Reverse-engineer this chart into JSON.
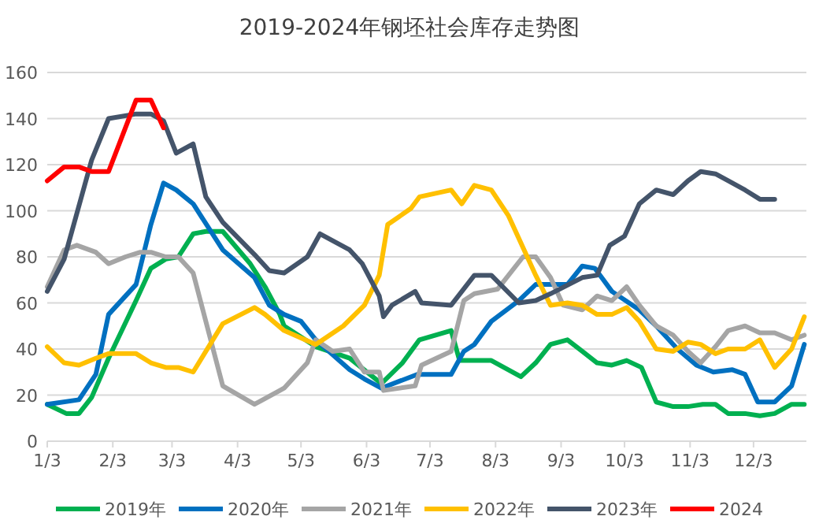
{
  "chart_data": {
    "type": "line",
    "title": "2019-2024年钢坯社会库存走势图",
    "xlim": [
      "--01-03",
      "--12-28"
    ],
    "xticks": [
      {
        "value": "--01-03",
        "label": "1/3"
      },
      {
        "value": "--02-03",
        "label": "2/3"
      },
      {
        "value": "--03-03",
        "label": "3/3"
      },
      {
        "value": "--04-03",
        "label": "4/3"
      },
      {
        "value": "--05-03",
        "label": "5/3"
      },
      {
        "value": "--06-03",
        "label": "6/3"
      },
      {
        "value": "--07-03",
        "label": "7/3"
      },
      {
        "value": "--08-03",
        "label": "8/3"
      },
      {
        "value": "--09-03",
        "label": "9/3"
      },
      {
        "value": "--10-03",
        "label": "10/3"
      },
      {
        "value": "--11-03",
        "label": "11/3"
      },
      {
        "value": "--12-03",
        "label": "12/3"
      }
    ],
    "ylim": [
      0,
      160
    ],
    "yticks": [
      0,
      20,
      40,
      60,
      80,
      100,
      120,
      140,
      160
    ],
    "grid": "y",
    "legend": "bottom",
    "series": [
      {
        "name": "2019年",
        "color": "#00b050",
        "x": [
          "--01-03",
          "--01-12",
          "--01-18",
          "--01-24",
          "--02-01",
          "--02-14",
          "--02-21",
          "--02-28",
          "--03-06",
          "--03-13",
          "--03-19",
          "--03-27",
          "--04-09",
          "--04-16",
          "--04-23",
          "--04-25",
          "--05-10",
          "--05-26",
          "--06-10",
          "--06-20",
          "--06-28",
          "--07-13",
          "--07-17",
          "--08-01",
          "--08-15",
          "--08-22",
          "--08-29",
          "--09-06",
          "--09-13",
          "--09-20",
          "--09-27",
          "--10-04",
          "--10-11",
          "--10-18",
          "--10-26",
          "--11-02",
          "--11-09",
          "--11-15",
          "--11-21",
          "--11-29",
          "--12-06",
          "--12-13",
          "--12-21",
          "--12-27"
        ],
        "values": [
          16,
          12,
          12,
          19,
          36,
          61,
          75,
          79,
          80,
          90,
          91,
          91,
          77,
          67,
          55,
          50,
          41,
          36,
          25,
          34,
          44,
          48,
          35,
          35,
          28,
          34,
          42,
          44,
          39,
          34,
          33,
          35,
          32,
          17,
          15,
          15,
          16,
          16,
          12,
          12,
          11,
          12,
          16,
          16
        ]
      },
      {
        "name": "2020年",
        "color": "#0070c0",
        "x": [
          "--01-03",
          "--01-18",
          "--01-26",
          "--02-01",
          "--02-14",
          "--02-21",
          "--02-27",
          "--03-05",
          "--03-13",
          "--03-27",
          "--04-11",
          "--04-18",
          "--04-25",
          "--05-03",
          "--05-10",
          "--05-26",
          "--06-02",
          "--06-10",
          "--06-27",
          "--07-13",
          "--07-19",
          "--07-24",
          "--08-01",
          "--08-14",
          "--08-22",
          "--09-06",
          "--09-13",
          "--09-19",
          "--09-27",
          "--10-10",
          "--10-18",
          "--10-28",
          "--11-06",
          "--11-14",
          "--11-23",
          "--11-29",
          "--12-05",
          "--12-13",
          "--12-21",
          "--12-27"
        ],
        "values": [
          16,
          18,
          29,
          55,
          68,
          94,
          112,
          109,
          103,
          83,
          71,
          59,
          55,
          52,
          44,
          31,
          27,
          23,
          29,
          29,
          39,
          42,
          52,
          61,
          68,
          68,
          76,
          75,
          65,
          57,
          50,
          40,
          33,
          30,
          31,
          29,
          17,
          17,
          24,
          42
        ]
      },
      {
        "name": "2021年",
        "color": "#a5a5a5",
        "x": [
          "--01-03",
          "--01-11",
          "--01-17",
          "--01-26",
          "--02-01",
          "--02-09",
          "--02-16",
          "--02-21",
          "--02-28",
          "--03-06",
          "--03-13",
          "--03-19",
          "--03-27",
          "--04-11",
          "--04-23",
          "--04-25",
          "--05-06",
          "--05-10",
          "--05-18",
          "--05-26",
          "--06-02",
          "--06-09",
          "--06-11",
          "--06-26",
          "--06-29",
          "--07-13",
          "--07-19",
          "--07-24",
          "--08-04",
          "--08-16",
          "--08-22",
          "--08-29",
          "--09-04",
          "--09-13",
          "--09-20",
          "--09-27",
          "--10-04",
          "--10-10",
          "--10-18",
          "--10-26",
          "--11-02",
          "--11-08",
          "--11-15",
          "--11-21",
          "--11-29",
          "--12-06",
          "--12-13",
          "--12-21",
          "--12-27"
        ],
        "values": [
          67,
          83,
          85,
          82,
          77,
          80,
          82,
          82,
          80,
          80,
          73,
          52,
          24,
          16,
          22,
          23,
          34,
          44,
          39,
          40,
          30,
          30,
          22,
          24,
          33,
          39,
          61,
          64,
          66,
          80,
          80,
          71,
          59,
          57,
          63,
          61,
          67,
          59,
          50,
          46,
          39,
          34,
          41,
          48,
          50,
          47,
          47,
          44,
          46
        ]
      },
      {
        "name": "2022年",
        "color": "#ffc000",
        "x": [
          "--01-03",
          "--01-11",
          "--01-18",
          "--01-26",
          "--02-01",
          "--02-14",
          "--02-21",
          "--02-28",
          "--03-06",
          "--03-13",
          "--03-27",
          "--04-11",
          "--04-16",
          "--04-25",
          "--05-10",
          "--05-23",
          "--06-02",
          "--06-09",
          "--06-13",
          "--06-24",
          "--06-28",
          "--07-13",
          "--07-18",
          "--07-24",
          "--08-01",
          "--08-09",
          "--08-22",
          "--08-29",
          "--09-06",
          "--09-13",
          "--09-20",
          "--09-27",
          "--10-04",
          "--10-10",
          "--10-18",
          "--10-26",
          "--11-02",
          "--11-08",
          "--11-15",
          "--11-21",
          "--11-29",
          "--12-06",
          "--12-13",
          "--12-21",
          "--12-27"
        ],
        "values": [
          41,
          34,
          33,
          36,
          38,
          38,
          34,
          32,
          32,
          30,
          51,
          58,
          55,
          48,
          42,
          50,
          59,
          72,
          94,
          101,
          106,
          109,
          103,
          111,
          109,
          98,
          72,
          59,
          60,
          59,
          55,
          55,
          58,
          52,
          40,
          39,
          43,
          42,
          38,
          40,
          40,
          44,
          32,
          40,
          54
        ]
      },
      {
        "name": "2023年",
        "color": "#44546a",
        "x": [
          "--01-03",
          "--01-11",
          "--01-24",
          "--02-01",
          "--02-14",
          "--02-21",
          "--02-27",
          "--03-05",
          "--03-13",
          "--03-19",
          "--03-27",
          "--04-11",
          "--04-18",
          "--04-25",
          "--05-06",
          "--05-12",
          "--05-26",
          "--06-01",
          "--06-09",
          "--06-11",
          "--06-15",
          "--06-26",
          "--06-29",
          "--07-13",
          "--07-24",
          "--08-01",
          "--08-14",
          "--08-22",
          "--08-29",
          "--09-13",
          "--09-20",
          "--09-26",
          "--10-03",
          "--10-10",
          "--10-18",
          "--10-26",
          "--11-02",
          "--11-08",
          "--11-15",
          "--11-21",
          "--11-29",
          "--12-06",
          "--12-13"
        ],
        "values": [
          65,
          79,
          122,
          140,
          142,
          142,
          139,
          125,
          129,
          106,
          95,
          81,
          74,
          73,
          80,
          90,
          83,
          77,
          63,
          54,
          59,
          65,
          60,
          59,
          72,
          72,
          60,
          61,
          64,
          71,
          72,
          85,
          89,
          103,
          109,
          107,
          113,
          117,
          116,
          113,
          109,
          105,
          105
        ]
      },
      {
        "name": "2024",
        "color": "#ff0000",
        "x": [
          "--01-03",
          "--01-11",
          "--01-18",
          "--01-24",
          "--02-01",
          "--02-14",
          "--02-21",
          "--02-27"
        ],
        "values": [
          113,
          119,
          119,
          117,
          117,
          148,
          148,
          136
        ]
      }
    ]
  }
}
